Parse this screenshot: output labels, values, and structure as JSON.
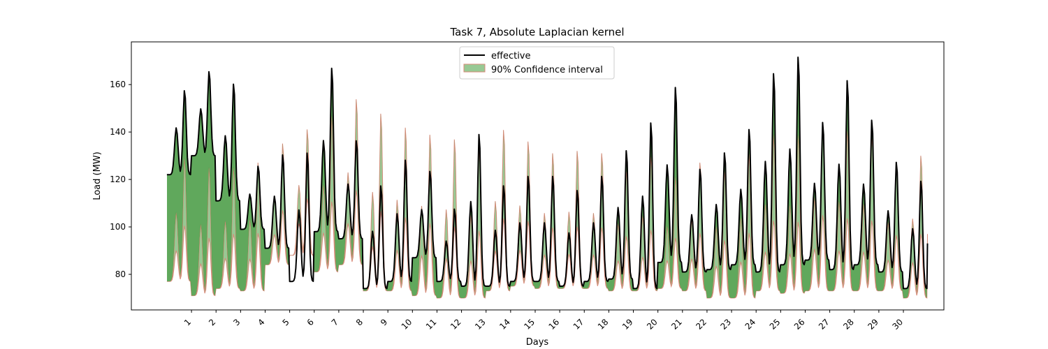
{
  "chart_data": {
    "type": "line",
    "title": "Task 7, Absolute Laplacian kernel",
    "xlabel": "Days",
    "ylabel": "Load (MW)",
    "ylim": [
      65,
      178
    ],
    "xlim": [
      -1.45,
      31.65
    ],
    "x_ticks": [
      "1",
      "2",
      "3",
      "4",
      "5",
      "6",
      "7",
      "8",
      "9",
      "10",
      "11",
      "12",
      "13",
      "14",
      "15",
      "16",
      "17",
      "18",
      "19",
      "20",
      "21",
      "22",
      "23",
      "24",
      "25",
      "26",
      "27",
      "28",
      "29",
      "30"
    ],
    "y_ticks": [
      80,
      100,
      120,
      140,
      160
    ],
    "grid": false,
    "legend": {
      "position": "top-center",
      "entries": [
        "effective",
        "90% Confidence interval"
      ]
    },
    "colors": {
      "line": "#000000",
      "band_fill": "#5aa85a",
      "band_edge": "#d98a7a",
      "band_light": "#98c994",
      "band_dark": "#4f9e4a"
    },
    "effective_daily": [
      {
        "day": 0,
        "peak": 158,
        "low": 122
      },
      {
        "day": 1,
        "peak": 166,
        "low": 130
      },
      {
        "day": 2,
        "peak": 161,
        "low": 111
      },
      {
        "day": 3,
        "peak": 126,
        "low": 99
      },
      {
        "day": 4,
        "peak": 131,
        "low": 91
      },
      {
        "day": 5,
        "peak": 132,
        "low": 77
      },
      {
        "day": 6,
        "peak": 168,
        "low": 98
      },
      {
        "day": 7,
        "peak": 137,
        "low": 95
      },
      {
        "day": 8,
        "peak": 118,
        "low": 74
      },
      {
        "day": 9,
        "peak": 129,
        "low": 77
      },
      {
        "day": 10,
        "peak": 124,
        "low": 87
      },
      {
        "day": 11,
        "peak": 108,
        "low": 77
      },
      {
        "day": 12,
        "peak": 140,
        "low": 75
      },
      {
        "day": 13,
        "peak": 118,
        "low": 75
      },
      {
        "day": 14,
        "peak": 122,
        "low": 77
      },
      {
        "day": 15,
        "peak": 122,
        "low": 77
      },
      {
        "day": 16,
        "peak": 116,
        "low": 75
      },
      {
        "day": 17,
        "peak": 122,
        "low": 77
      },
      {
        "day": 18,
        "peak": 133,
        "low": 78
      },
      {
        "day": 19,
        "peak": 145,
        "low": 74
      },
      {
        "day": 20,
        "peak": 160,
        "low": 85
      },
      {
        "day": 21,
        "peak": 125,
        "low": 81
      },
      {
        "day": 22,
        "peak": 132,
        "low": 82
      },
      {
        "day": 23,
        "peak": 142,
        "low": 84
      },
      {
        "day": 24,
        "peak": 166,
        "low": 81
      },
      {
        "day": 25,
        "peak": 173,
        "low": 84
      },
      {
        "day": 26,
        "peak": 145,
        "low": 86
      },
      {
        "day": 27,
        "peak": 163,
        "low": 82
      },
      {
        "day": 28,
        "peak": 146,
        "low": 84
      },
      {
        "day": 29,
        "peak": 128,
        "low": 81
      },
      {
        "day": 30,
        "peak": 120,
        "low": 74
      }
    ],
    "interval_daily": [
      {
        "day": 0,
        "upper": 130,
        "lower": 77
      },
      {
        "day": 1,
        "upper": 126,
        "lower": 71
      },
      {
        "day": 2,
        "upper": 126,
        "lower": 74
      },
      {
        "day": 3,
        "upper": 128,
        "lower": 73
      },
      {
        "day": 4,
        "upper": 136,
        "lower": 84
      },
      {
        "day": 5,
        "upper": 142,
        "lower": 88
      },
      {
        "day": 6,
        "upper": 148,
        "lower": 81
      },
      {
        "day": 7,
        "upper": 155,
        "lower": 84
      },
      {
        "day": 8,
        "upper": 149,
        "lower": 73
      },
      {
        "day": 9,
        "upper": 143,
        "lower": 73
      },
      {
        "day": 10,
        "upper": 140,
        "lower": 71
      },
      {
        "day": 11,
        "upper": 138,
        "lower": 70
      },
      {
        "day": 12,
        "upper": 134,
        "lower": 70
      },
      {
        "day": 13,
        "upper": 142,
        "lower": 73
      },
      {
        "day": 14,
        "upper": 137,
        "lower": 75
      },
      {
        "day": 15,
        "upper": 132,
        "lower": 74
      },
      {
        "day": 16,
        "upper": 133,
        "lower": 74
      },
      {
        "day": 17,
        "upper": 132,
        "lower": 74
      },
      {
        "day": 18,
        "upper": 125,
        "lower": 73
      },
      {
        "day": 19,
        "upper": 131,
        "lower": 73
      },
      {
        "day": 20,
        "upper": 122,
        "lower": 74
      },
      {
        "day": 21,
        "upper": 128,
        "lower": 73
      },
      {
        "day": 22,
        "upper": 125,
        "lower": 70
      },
      {
        "day": 23,
        "upper": 132,
        "lower": 70
      },
      {
        "day": 24,
        "upper": 140,
        "lower": 73
      },
      {
        "day": 25,
        "upper": 140,
        "lower": 72
      },
      {
        "day": 26,
        "upper": 145,
        "lower": 73
      },
      {
        "day": 27,
        "upper": 142,
        "lower": 73
      },
      {
        "day": 28,
        "upper": 140,
        "lower": 73
      },
      {
        "day": 29,
        "upper": 126,
        "lower": 73
      },
      {
        "day": 30,
        "upper": 131,
        "lower": 70
      }
    ],
    "end_values": {
      "effective": 93,
      "interval_lower": 89,
      "interval_upper": 97
    }
  }
}
